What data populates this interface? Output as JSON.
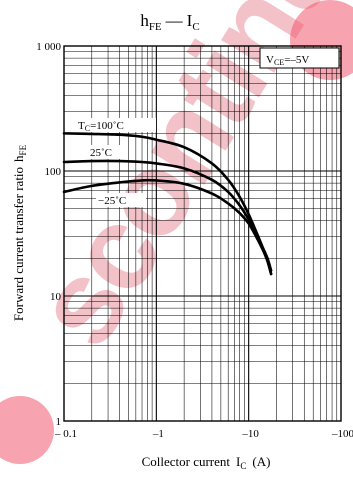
{
  "chart_data": {
    "type": "line",
    "title": "h",
    "title_sub_left": "FE",
    "title_dash": "—",
    "title_right": "I",
    "title_sub_right": "C",
    "xlabel": "Collector current",
    "xlabel_symbol": "I",
    "xlabel_symbol_sub": "C",
    "xlabel_unit": "(A)",
    "ylabel": "Forward current transfer ratio",
    "ylabel_symbol": "h",
    "ylabel_symbol_sub": "FE",
    "x_scale": "log",
    "y_scale": "log",
    "x_magnitude_range": [
      0.1,
      100
    ],
    "ylim": [
      1,
      1000
    ],
    "x_tick_labels": [
      "– 0.1",
      "–1",
      "–10",
      "–100"
    ],
    "y_tick_labels": [
      "1 000",
      "100",
      "10",
      "1"
    ],
    "grid": true,
    "condition_label": "V",
    "condition_sub": "CE",
    "condition_value": "=–5V",
    "series": [
      {
        "name": "T",
        "name_sub": "C",
        "name_value": "=100˚C",
        "x": [
          -0.1,
          -0.2,
          -0.4,
          -0.7,
          -1,
          -2,
          -4,
          -6,
          -8,
          -10,
          -12,
          -14,
          -16,
          -17.5
        ],
        "y": [
          200,
          198,
          195,
          188,
          178,
          155,
          115,
          85,
          62,
          45,
          33,
          25,
          19,
          15
        ]
      },
      {
        "name": "25˚C",
        "x": [
          -0.1,
          -0.2,
          -0.4,
          -0.7,
          -1,
          -2,
          -4,
          -6,
          -8,
          -10,
          -12,
          -14,
          -16,
          -17.5
        ],
        "y": [
          118,
          120,
          120,
          118,
          115,
          105,
          85,
          68,
          53,
          41,
          32,
          25,
          20,
          16
        ]
      },
      {
        "name": "−25˚C",
        "x": [
          -0.1,
          -0.2,
          -0.4,
          -0.7,
          -1,
          -2,
          -4,
          -6,
          -8,
          -10,
          -12,
          -14,
          -16,
          -17.5
        ],
        "y": [
          68,
          76,
          81,
          84,
          84,
          79,
          66,
          55,
          46,
          38,
          30,
          24,
          19,
          15
        ]
      }
    ],
    "watermark": "scontinued"
  }
}
